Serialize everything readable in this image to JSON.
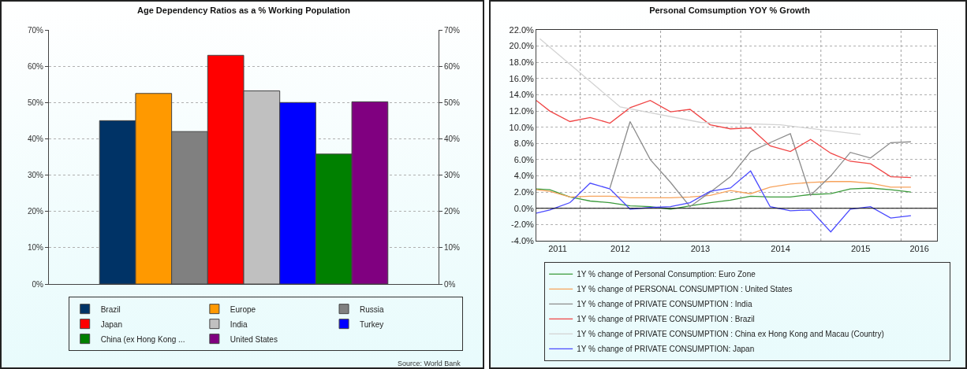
{
  "chart_data": [
    {
      "type": "bar",
      "title": "Age Dependency Ratios as a % Working Population",
      "categories": [
        null
      ],
      "series": [
        {
          "name": "Brazil",
          "color": "#003366",
          "values": [
            45
          ]
        },
        {
          "name": "Europe",
          "color": "#ff9900",
          "values": [
            52.5
          ]
        },
        {
          "name": "Russia",
          "color": "#808080",
          "values": [
            42
          ]
        },
        {
          "name": "Japan",
          "color": "#ff0000",
          "values": [
            63
          ]
        },
        {
          "name": "India",
          "color": "#c0c0c0",
          "values": [
            53.2
          ]
        },
        {
          "name": "Turkey",
          "color": "#0000ff",
          "values": [
            50
          ]
        },
        {
          "name": "China (ex Hong Kong ...",
          "color": "#008000",
          "values": [
            35.8
          ]
        },
        {
          "name": "United States",
          "color": "#800080",
          "values": [
            50.2
          ]
        }
      ],
      "ylim": [
        0,
        70
      ],
      "yticks": [
        {
          "value": 0,
          "label": "0%"
        },
        {
          "value": 10,
          "label": "10%"
        },
        {
          "value": 20,
          "label": "20%"
        },
        {
          "value": 30,
          "label": "30%"
        },
        {
          "value": 40,
          "label": "40%"
        },
        {
          "value": 50,
          "label": "50%"
        },
        {
          "value": 60,
          "label": "60%"
        },
        {
          "value": 70,
          "label": "70%"
        }
      ],
      "y2lim": [
        0,
        70
      ],
      "y2ticks": [
        {
          "value": 0,
          "label": "0%"
        },
        {
          "value": 10,
          "label": "10%"
        },
        {
          "value": 20,
          "label": "20%"
        },
        {
          "value": 30,
          "label": "30%"
        },
        {
          "value": 40,
          "label": "40%"
        },
        {
          "value": 50,
          "label": "50%"
        },
        {
          "value": 60,
          "label": "60%"
        },
        {
          "value": 70,
          "label": "70%"
        }
      ],
      "grid": "y",
      "legend": "bottom",
      "annotations": [
        "Source: World Bank"
      ]
    },
    {
      "type": "line",
      "title": "Personal Comsumption YOY % Growth",
      "x": [
        "2011-06-15",
        "2011-08-15",
        "2011-11-15",
        "2012-02-15",
        "2012-05-15",
        "2012-08-15",
        "2012-11-15",
        "2013-02-15",
        "2013-05-15",
        "2013-08-15",
        "2013-11-15",
        "2014-02-15",
        "2014-05-15",
        "2014-08-15",
        "2014-11-15",
        "2015-02-15",
        "2015-05-15",
        "2015-08-15",
        "2015-11-15",
        "2016-02-15"
      ],
      "series": [
        {
          "name": "1Y % change of Personal Consumption: Euro Zone",
          "color": "#3a9a3a",
          "values": [
            2.4,
            2.3,
            1.4,
            0.9,
            0.7,
            0.3,
            0.2,
            -0.1,
            0.3,
            0.7,
            1.0,
            1.5,
            1.4,
            1.4,
            1.7,
            1.8,
            2.4,
            2.5,
            2.3,
            2.0
          ]
        },
        {
          "name": "1Y % change of PERSONAL CONSUMPTION : United States",
          "color": "#f7a35c",
          "values": [
            2.3,
            2.1,
            1.4,
            1.5,
            1.5,
            1.3,
            1.3,
            1.3,
            1.4,
            1.6,
            2.2,
            1.8,
            2.6,
            3.0,
            3.2,
            3.3,
            3.3,
            3.1,
            2.6,
            2.6
          ]
        },
        {
          "name": "1Y % change of PRIVATE CONSUMPTION : India",
          "color": "#8c8c8c",
          "values": [
            null,
            null,
            null,
            null,
            2.5,
            10.7,
            6.0,
            3.2,
            0.2,
            2.0,
            3.9,
            7.0,
            8.1,
            9.2,
            1.6,
            4.0,
            6.9,
            6.2,
            8.1,
            8.2
          ]
        },
        {
          "name": "1Y % change of PRIVATE CONSUMPTION : Brazil",
          "color": "#f04545",
          "values": [
            13.3,
            12.0,
            10.7,
            11.2,
            10.5,
            12.4,
            13.3,
            11.9,
            12.2,
            10.3,
            9.8,
            9.9,
            7.7,
            7.0,
            8.5,
            6.8,
            5.8,
            5.5,
            3.9,
            3.8
          ]
        },
        {
          "name": "1Y % change of PRIVATE CONSUMPTION : China ex Hong Kong and Macau (Country)",
          "color": "#d3d3d3",
          "x": [
            "2011-07-01",
            "2012-07-01",
            "2013-07-01",
            "2014-07-01",
            "2015-07-01"
          ],
          "values": [
            20.9,
            12.5,
            10.6,
            10.3,
            9.1
          ]
        },
        {
          "name": "1Y % change of PRIVATE CONSUMPTION: Japan",
          "color": "#4a4aff",
          "values": [
            -0.6,
            -0.2,
            0.7,
            3.1,
            2.4,
            -0.1,
            0.1,
            0.2,
            0.7,
            2.1,
            2.5,
            4.6,
            0.2,
            -0.3,
            -0.2,
            -2.9,
            -0.1,
            0.2,
            -1.2,
            -0.9
          ]
        }
      ],
      "xlim": [
        "2011-06-15",
        "2016-06-13"
      ],
      "xticks": [
        {
          "value": "2011-09-20",
          "label": "2011"
        },
        {
          "value": "2012-01-01",
          "label": null
        },
        {
          "value": "2012-07-01",
          "label": "2012"
        },
        {
          "value": "2013-01-01",
          "label": null
        },
        {
          "value": "2013-07-01",
          "label": "2013"
        },
        {
          "value": "2014-01-01",
          "label": null
        },
        {
          "value": "2014-07-01",
          "label": "2014"
        },
        {
          "value": "2015-01-01",
          "label": null
        },
        {
          "value": "2015-07-01",
          "label": "2015"
        },
        {
          "value": "2016-01-01",
          "label": null
        },
        {
          "value": "2016-03-25",
          "label": "2016"
        }
      ],
      "ylim": [
        -4,
        22
      ],
      "yticks": [
        {
          "value": -4,
          "label": "-4.0%"
        },
        {
          "value": -2,
          "label": "-2.0%"
        },
        {
          "value": 0,
          "label": "0.0%"
        },
        {
          "value": 2,
          "label": "2.0%"
        },
        {
          "value": 4,
          "label": "4.0%"
        },
        {
          "value": 6,
          "label": "6.0%"
        },
        {
          "value": 8,
          "label": "8.0%"
        },
        {
          "value": 10,
          "label": "10.0%"
        },
        {
          "value": 12,
          "label": "12.0%"
        },
        {
          "value": 14,
          "label": "14.0%"
        },
        {
          "value": 16,
          "label": "16.0%"
        },
        {
          "value": 18,
          "label": "18.0%"
        },
        {
          "value": 20,
          "label": "20.0%"
        },
        {
          "value": 22,
          "label": "22.0%"
        }
      ],
      "grid": true,
      "legend": "bottom",
      "ref_lines": [
        {
          "axis": "y",
          "value": 0,
          "color": "#000000"
        }
      ]
    }
  ]
}
